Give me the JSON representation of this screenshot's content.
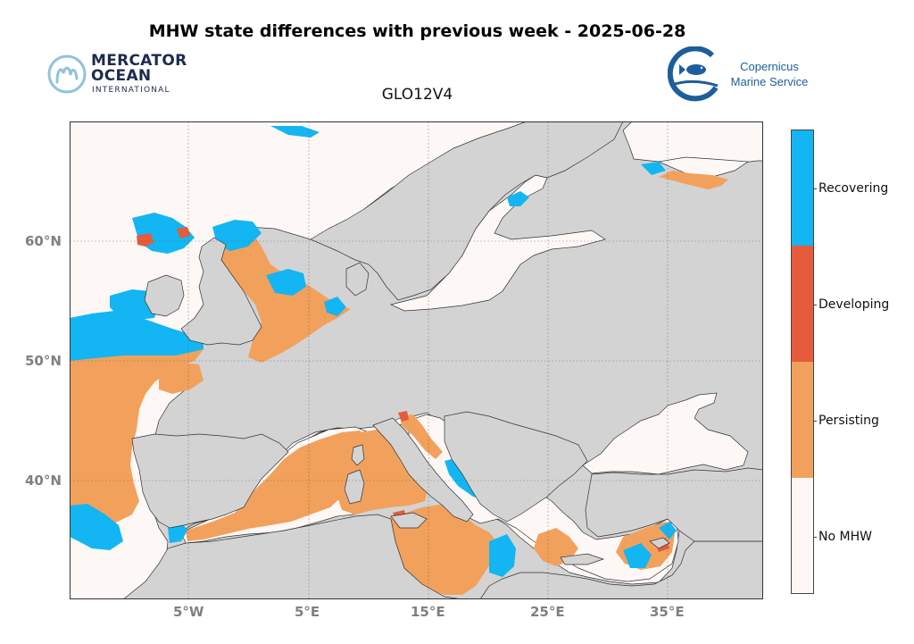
{
  "title": "MHW state differences with previous week - 2025-06-28",
  "subtitle": "GLO12V4",
  "logos": {
    "mercator": {
      "line1": "MERCATOR",
      "line2": "OCEAN",
      "line3": "INTERNATIONAL"
    },
    "copernicus": {
      "line1": "Copernicus",
      "line2": "Marine Service"
    }
  },
  "map": {
    "lat_labels": [
      "60°N",
      "50°N",
      "40°N"
    ],
    "lon_labels": [
      "5°W",
      "5°E",
      "15°E",
      "25°E",
      "35°E"
    ],
    "colors": {
      "land": "#d3d3d3",
      "no_mhw": "#fdf8f6",
      "persisting": "#f2a15c",
      "developing": "#e55b3c",
      "recovering": "#13b6f2"
    }
  },
  "legend": {
    "items": [
      {
        "label": "Recovering",
        "color": "#13b6f2"
      },
      {
        "label": "Developing",
        "color": "#e55b3c"
      },
      {
        "label": "Persisting",
        "color": "#f2a15c"
      },
      {
        "label": "No MHW",
        "color": "#fdf8f6"
      }
    ]
  }
}
